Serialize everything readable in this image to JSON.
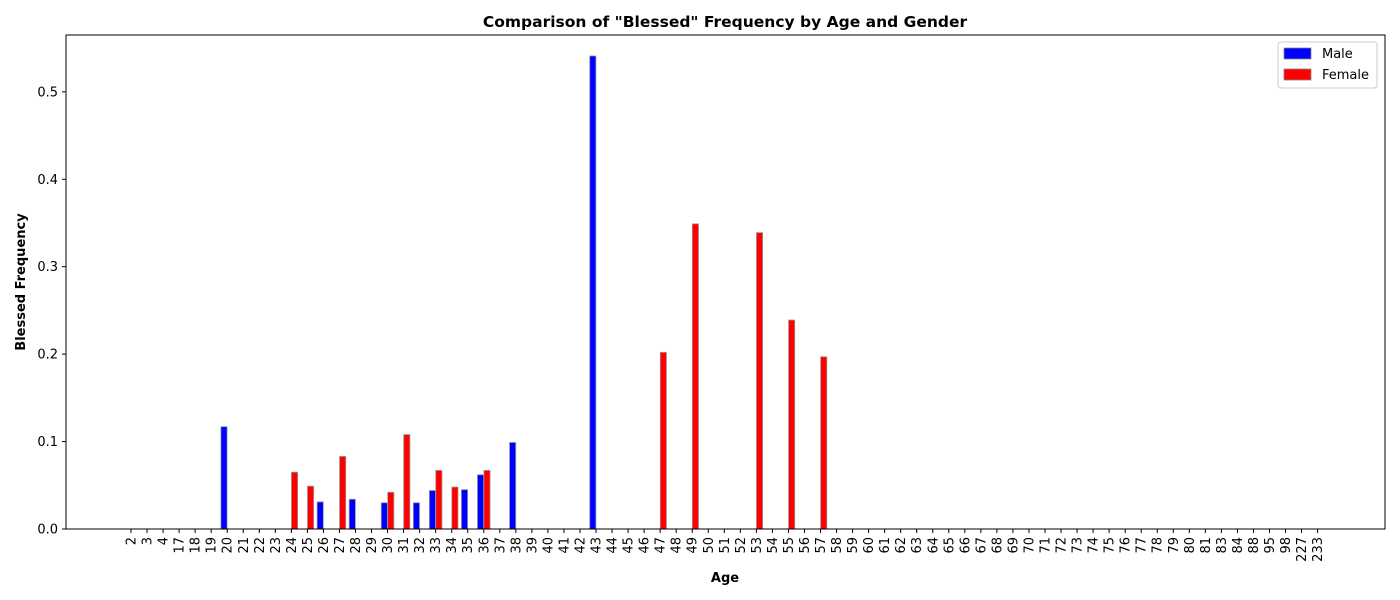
{
  "chart_data": {
    "type": "bar",
    "title": "Comparison of \"Blessed\" Frequency by Age and Gender",
    "xlabel": "Age",
    "ylabel": "Blessed Frequency",
    "ylim": [
      0,
      0.565
    ],
    "yticks": [
      "0.0",
      "0.1",
      "0.2",
      "0.3",
      "0.4",
      "0.5"
    ],
    "grid": false,
    "legend_position": "top-right",
    "categories": [
      "2",
      "3",
      "4",
      "17",
      "18",
      "19",
      "20",
      "21",
      "22",
      "23",
      "24",
      "25",
      "26",
      "27",
      "28",
      "29",
      "30",
      "31",
      "32",
      "33",
      "34",
      "35",
      "36",
      "37",
      "38",
      "39",
      "40",
      "41",
      "42",
      "43",
      "44",
      "45",
      "46",
      "47",
      "48",
      "49",
      "50",
      "51",
      "52",
      "53",
      "54",
      "55",
      "56",
      "57",
      "58",
      "59",
      "60",
      "61",
      "62",
      "63",
      "64",
      "65",
      "66",
      "67",
      "68",
      "69",
      "70",
      "71",
      "72",
      "73",
      "74",
      "75",
      "76",
      "77",
      "78",
      "79",
      "80",
      "81",
      "83",
      "84",
      "88",
      "95",
      "98",
      "227",
      "233"
    ],
    "series": [
      {
        "name": "Male",
        "color": "#0000ff",
        "values": [
          0,
          0,
          0,
          0,
          0,
          0,
          0.117,
          0,
          0,
          0,
          0,
          0,
          0.031,
          0,
          0.034,
          0,
          0.03,
          0,
          0.03,
          0.044,
          0,
          0.045,
          0.062,
          0,
          0.099,
          0,
          0,
          0,
          0,
          0.541,
          0,
          0,
          0,
          0,
          0,
          0,
          0,
          0,
          0,
          0,
          0,
          0,
          0,
          0,
          0,
          0,
          0,
          0,
          0,
          0,
          0,
          0,
          0,
          0,
          0,
          0,
          0,
          0,
          0,
          0,
          0,
          0,
          0,
          0,
          0,
          0,
          0,
          0,
          0,
          0,
          0,
          0,
          0,
          0,
          0
        ]
      },
      {
        "name": "Female",
        "color": "#ff0000",
        "values": [
          0,
          0,
          0,
          0,
          0,
          0,
          0,
          0,
          0,
          0,
          0.065,
          0.049,
          0,
          0.083,
          0,
          0,
          0.042,
          0.108,
          0,
          0.067,
          0.048,
          0,
          0.067,
          0,
          0,
          0,
          0,
          0,
          0,
          0,
          0,
          0,
          0,
          0.202,
          0,
          0.349,
          0,
          0,
          0,
          0.339,
          0,
          0.239,
          0,
          0.197,
          0,
          0,
          0,
          0,
          0,
          0,
          0,
          0,
          0,
          0,
          0,
          0,
          0,
          0,
          0,
          0,
          0,
          0,
          0,
          0,
          0,
          0,
          0,
          0,
          0,
          0,
          0,
          0,
          0,
          0,
          0
        ]
      }
    ]
  }
}
